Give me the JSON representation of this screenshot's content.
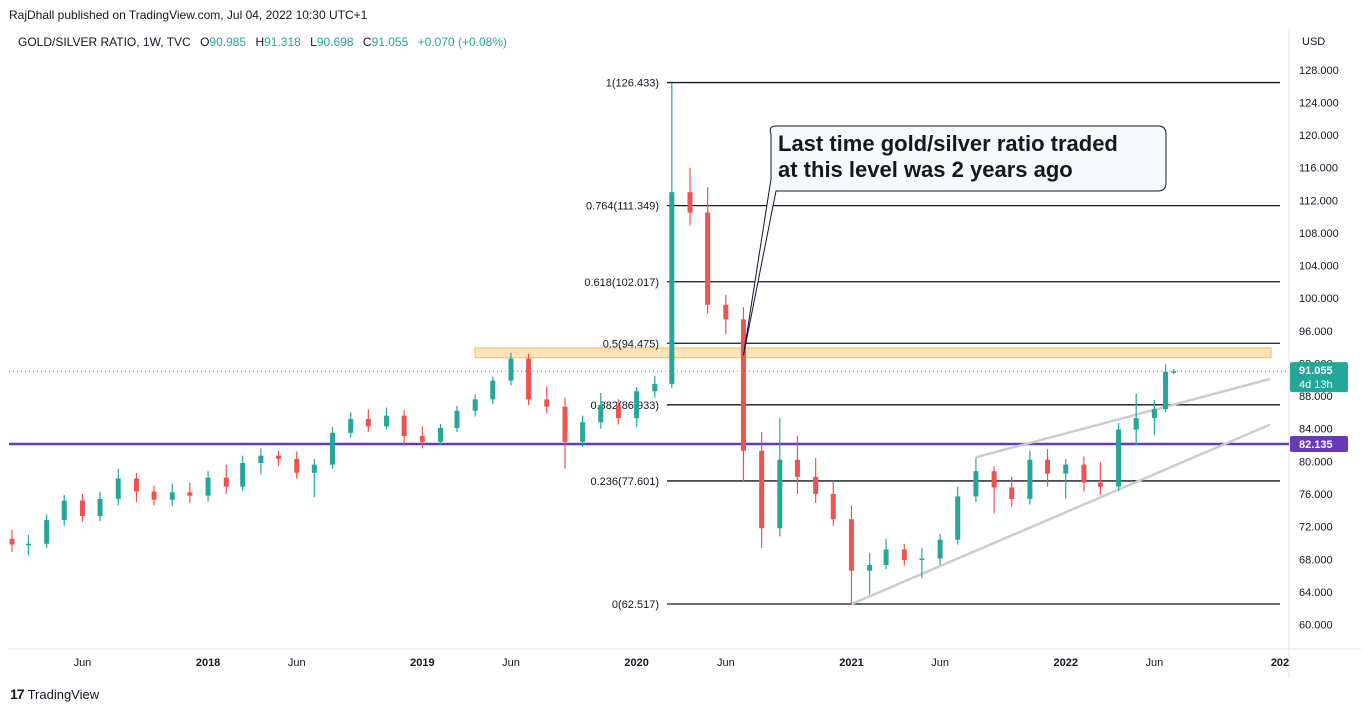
{
  "header": {
    "published": "RajDhall published on TradingView.com, Jul 04, 2022 10:30 UTC+1"
  },
  "legend": {
    "symbol": "GOLD/SILVER RATIO, 1W, TVC",
    "o_label": "O",
    "o_value": "90.985",
    "h_label": "H",
    "h_value": "91.318",
    "l_label": "L",
    "l_value": "90.698",
    "c_label": "C",
    "c_value": "91.055",
    "change": "+0.070 (+0.08%)"
  },
  "currency": "USD",
  "annotation": {
    "line1": "Last time gold/silver ratio traded",
    "line2": "at this level was 2 years ago"
  },
  "price_badge": {
    "value": "91.055",
    "countdown": "4d 13h"
  },
  "support_badge": {
    "value": "82.135"
  },
  "footer": {
    "brand": "TradingView",
    "logo": "17"
  },
  "colors": {
    "up": "#26a69a",
    "down": "#ef5350",
    "support": "#673ab7",
    "zone": "#ffcc80",
    "price_line": "#26a69a",
    "trend": "#cccccc"
  },
  "chart_data": {
    "type": "candlestick",
    "title": "GOLD/SILVER RATIO, 1W, TVC",
    "ylim": [
      57.0,
      133.0
    ],
    "y_ticks": [
      "60.000",
      "64.000",
      "68.000",
      "72.000",
      "76.000",
      "80.000",
      "84.000",
      "88.000",
      "92.000",
      "96.000",
      "100.000",
      "104.000",
      "108.000",
      "112.000",
      "116.000",
      "120.000",
      "124.000",
      "128.000"
    ],
    "x_ticks": [
      {
        "date": "2017-06-01",
        "label": "Jun"
      },
      {
        "date": "2018-01-01",
        "label": "2018"
      },
      {
        "date": "2018-06-01",
        "label": "Jun"
      },
      {
        "date": "2019-01-01",
        "label": "2019"
      },
      {
        "date": "2019-06-01",
        "label": "Jun"
      },
      {
        "date": "2020-01-01",
        "label": "2020"
      },
      {
        "date": "2020-06-01",
        "label": "Jun"
      },
      {
        "date": "2021-01-01",
        "label": "2021"
      },
      {
        "date": "2021-06-01",
        "label": "Jun"
      },
      {
        "date": "2022-01-01",
        "label": "2022"
      },
      {
        "date": "2022-06-01",
        "label": "Jun"
      },
      {
        "date": "2023-01-01",
        "label": "202"
      }
    ],
    "fib_levels": [
      {
        "label": "1(126.433)",
        "value": 126.433
      },
      {
        "label": "0.764(111.349)",
        "value": 111.349
      },
      {
        "label": "0.618(102.017)",
        "value": 102.017
      },
      {
        "label": "0.5(94.475)",
        "value": 94.475
      },
      {
        "label": "0.382(86.933)",
        "value": 86.933
      },
      {
        "label": "0.236(77.601)",
        "value": 77.601
      },
      {
        "label": "0(62.517)",
        "value": 62.517
      }
    ],
    "support_level": 82.135,
    "last_price": 91.055,
    "resistance_zone": [
      92.7,
      93.9
    ],
    "series": [
      {
        "date": "2017-02-01",
        "open": 70.5,
        "high": 71.6,
        "low": 68.9,
        "close": 69.8
      },
      {
        "date": "2017-03-01",
        "open": 69.8,
        "high": 71.0,
        "low": 68.5,
        "close": 69.9
      },
      {
        "date": "2017-04-01",
        "open": 69.9,
        "high": 73.5,
        "low": 69.4,
        "close": 72.8
      },
      {
        "date": "2017-05-01",
        "open": 72.8,
        "high": 75.9,
        "low": 72.1,
        "close": 75.2
      },
      {
        "date": "2017-06-01",
        "open": 75.2,
        "high": 76.0,
        "low": 72.6,
        "close": 73.3
      },
      {
        "date": "2017-07-01",
        "open": 73.3,
        "high": 76.3,
        "low": 72.7,
        "close": 75.4
      },
      {
        "date": "2017-08-01",
        "open": 75.4,
        "high": 79.1,
        "low": 74.6,
        "close": 77.9
      },
      {
        "date": "2017-09-01",
        "open": 77.9,
        "high": 78.6,
        "low": 75.0,
        "close": 76.3
      },
      {
        "date": "2017-10-01",
        "open": 76.3,
        "high": 77.0,
        "low": 74.6,
        "close": 75.3
      },
      {
        "date": "2017-11-01",
        "open": 75.3,
        "high": 77.3,
        "low": 74.5,
        "close": 76.2
      },
      {
        "date": "2017-12-01",
        "open": 76.2,
        "high": 77.4,
        "low": 74.9,
        "close": 75.8
      },
      {
        "date": "2018-01-01",
        "open": 75.8,
        "high": 78.8,
        "low": 75.1,
        "close": 78.0
      },
      {
        "date": "2018-02-01",
        "open": 78.0,
        "high": 79.6,
        "low": 76.0,
        "close": 76.9
      },
      {
        "date": "2018-03-01",
        "open": 76.9,
        "high": 80.7,
        "low": 76.4,
        "close": 79.8
      },
      {
        "date": "2018-04-01",
        "open": 79.8,
        "high": 81.6,
        "low": 78.4,
        "close": 80.7
      },
      {
        "date": "2018-05-01",
        "open": 80.7,
        "high": 81.3,
        "low": 79.4,
        "close": 80.3
      },
      {
        "date": "2018-06-01",
        "open": 80.3,
        "high": 81.2,
        "low": 77.9,
        "close": 78.6
      },
      {
        "date": "2018-07-01",
        "open": 78.6,
        "high": 80.3,
        "low": 75.6,
        "close": 79.6
      },
      {
        "date": "2018-08-01",
        "open": 79.6,
        "high": 84.2,
        "low": 79.1,
        "close": 83.5
      },
      {
        "date": "2018-09-01",
        "open": 83.5,
        "high": 86.0,
        "low": 82.9,
        "close": 85.2
      },
      {
        "date": "2018-10-01",
        "open": 85.2,
        "high": 86.4,
        "low": 83.6,
        "close": 84.3
      },
      {
        "date": "2018-11-01",
        "open": 84.3,
        "high": 86.6,
        "low": 83.9,
        "close": 85.6
      },
      {
        "date": "2018-12-01",
        "open": 85.6,
        "high": 86.3,
        "low": 81.9,
        "close": 83.1
      },
      {
        "date": "2019-01-01",
        "open": 83.1,
        "high": 84.3,
        "low": 81.6,
        "close": 82.4
      },
      {
        "date": "2019-02-01",
        "open": 82.4,
        "high": 84.6,
        "low": 82.0,
        "close": 84.1
      },
      {
        "date": "2019-03-01",
        "open": 84.1,
        "high": 86.8,
        "low": 83.6,
        "close": 86.2
      },
      {
        "date": "2019-04-01",
        "open": 86.2,
        "high": 88.2,
        "low": 85.5,
        "close": 87.6
      },
      {
        "date": "2019-05-01",
        "open": 87.6,
        "high": 90.4,
        "low": 87.0,
        "close": 89.9
      },
      {
        "date": "2019-06-01",
        "open": 89.9,
        "high": 93.3,
        "low": 89.3,
        "close": 92.6
      },
      {
        "date": "2019-07-01",
        "open": 92.6,
        "high": 93.2,
        "low": 86.9,
        "close": 87.6
      },
      {
        "date": "2019-08-01",
        "open": 87.6,
        "high": 89.2,
        "low": 85.9,
        "close": 86.7
      },
      {
        "date": "2019-09-01",
        "open": 86.7,
        "high": 87.8,
        "low": 79.1,
        "close": 82.4
      },
      {
        "date": "2019-10-01",
        "open": 82.4,
        "high": 85.6,
        "low": 81.8,
        "close": 84.8
      },
      {
        "date": "2019-11-01",
        "open": 84.8,
        "high": 88.4,
        "low": 84.0,
        "close": 86.9
      },
      {
        "date": "2019-12-01",
        "open": 86.9,
        "high": 87.6,
        "low": 84.5,
        "close": 85.3
      },
      {
        "date": "2020-01-01",
        "open": 85.3,
        "high": 89.1,
        "low": 84.2,
        "close": 88.6
      },
      {
        "date": "2020-02-01",
        "open": 88.6,
        "high": 90.5,
        "low": 87.8,
        "close": 89.5
      },
      {
        "date": "2020-03-01",
        "open": 89.5,
        "high": 126.4,
        "low": 89.0,
        "close": 113.0
      },
      {
        "date": "2020-04-01",
        "open": 113.0,
        "high": 116.0,
        "low": 108.9,
        "close": 110.5
      },
      {
        "date": "2020-05-01",
        "open": 110.5,
        "high": 113.6,
        "low": 98.1,
        "close": 99.2
      },
      {
        "date": "2020-06-01",
        "open": 99.2,
        "high": 100.4,
        "low": 95.6,
        "close": 97.4
      },
      {
        "date": "2020-07-01",
        "open": 97.4,
        "high": 98.9,
        "low": 77.6,
        "close": 81.3
      },
      {
        "date": "2020-08-01",
        "open": 81.3,
        "high": 83.6,
        "low": 69.4,
        "close": 71.8
      },
      {
        "date": "2020-09-01",
        "open": 71.8,
        "high": 85.3,
        "low": 70.8,
        "close": 80.2
      },
      {
        "date": "2020-10-01",
        "open": 80.2,
        "high": 83.1,
        "low": 76.0,
        "close": 78.1
      },
      {
        "date": "2020-11-01",
        "open": 78.1,
        "high": 80.4,
        "low": 74.9,
        "close": 76.0
      },
      {
        "date": "2020-12-01",
        "open": 76.0,
        "high": 77.6,
        "low": 72.1,
        "close": 72.9
      },
      {
        "date": "2021-01-01",
        "open": 72.9,
        "high": 74.6,
        "low": 62.5,
        "close": 66.6
      },
      {
        "date": "2021-02-01",
        "open": 66.6,
        "high": 68.8,
        "low": 63.7,
        "close": 67.3
      },
      {
        "date": "2021-03-01",
        "open": 67.3,
        "high": 70.5,
        "low": 66.8,
        "close": 69.2
      },
      {
        "date": "2021-04-01",
        "open": 69.2,
        "high": 69.9,
        "low": 67.2,
        "close": 67.9
      },
      {
        "date": "2021-05-01",
        "open": 67.9,
        "high": 69.4,
        "low": 65.7,
        "close": 68.1
      },
      {
        "date": "2021-06-01",
        "open": 68.1,
        "high": 71.1,
        "low": 67.3,
        "close": 70.4
      },
      {
        "date": "2021-07-01",
        "open": 70.4,
        "high": 76.9,
        "low": 69.8,
        "close": 75.7
      },
      {
        "date": "2021-08-01",
        "open": 75.7,
        "high": 80.4,
        "low": 75.0,
        "close": 78.8
      },
      {
        "date": "2021-09-01",
        "open": 78.8,
        "high": 79.4,
        "low": 73.6,
        "close": 76.8
      },
      {
        "date": "2021-10-01",
        "open": 76.8,
        "high": 78.1,
        "low": 74.4,
        "close": 75.4
      },
      {
        "date": "2021-11-01",
        "open": 75.4,
        "high": 81.3,
        "low": 74.7,
        "close": 80.2
      },
      {
        "date": "2021-12-01",
        "open": 80.2,
        "high": 81.5,
        "low": 76.9,
        "close": 78.5
      },
      {
        "date": "2022-01-01",
        "open": 78.5,
        "high": 80.3,
        "low": 75.4,
        "close": 79.6
      },
      {
        "date": "2022-02-01",
        "open": 79.6,
        "high": 80.6,
        "low": 76.3,
        "close": 77.4
      },
      {
        "date": "2022-03-01",
        "open": 77.4,
        "high": 79.9,
        "low": 75.9,
        "close": 76.9
      },
      {
        "date": "2022-04-01",
        "open": 76.9,
        "high": 84.7,
        "low": 76.4,
        "close": 83.9
      },
      {
        "date": "2022-05-01",
        "open": 83.9,
        "high": 88.3,
        "low": 82.0,
        "close": 85.3
      },
      {
        "date": "2022-06-01",
        "open": 85.3,
        "high": 87.5,
        "low": 83.2,
        "close": 86.4
      },
      {
        "date": "2022-06-20",
        "open": 86.4,
        "high": 91.9,
        "low": 86.0,
        "close": 90.98
      },
      {
        "date": "2022-07-04",
        "open": 90.985,
        "high": 91.318,
        "low": 90.698,
        "close": 91.055
      }
    ],
    "trendlines": [
      {
        "from": {
          "date": "2021-01-01",
          "value": 62.5
        },
        "to": {
          "date": "2022-12-15",
          "value": 84.5
        }
      },
      {
        "from": {
          "date": "2021-08-01",
          "value": 80.5
        },
        "to": {
          "date": "2022-12-15",
          "value": 90.1
        }
      }
    ],
    "callout_anchor": {
      "date": "2020-07-01",
      "value": 93.0
    }
  }
}
